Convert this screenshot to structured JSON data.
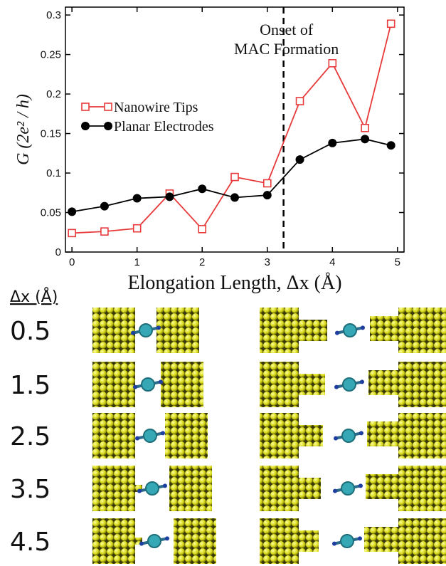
{
  "chart_data": {
    "type": "line",
    "ylabel": "G (2e² / h)",
    "xlabel": "Elongation Length, Δx (Å)",
    "x": [
      0,
      0.5,
      1,
      1.5,
      2,
      2.5,
      3,
      3.5,
      4,
      4.5,
      4.9
    ],
    "series": [
      {
        "name": "Nanowire Tips",
        "color": "#e83a3a",
        "marker": "open-square",
        "values": [
          0.024,
          0.026,
          0.03,
          0.074,
          0.029,
          0.095,
          0.087,
          0.191,
          0.239,
          0.157,
          0.289
        ]
      },
      {
        "name": "Planar Electrodes",
        "color": "#000000",
        "marker": "circle",
        "values": [
          0.051,
          0.058,
          0.068,
          0.07,
          0.08,
          0.069,
          0.072,
          0.117,
          0.138,
          0.143,
          0.135
        ]
      }
    ],
    "xlim": [
      -0.1,
      5.1
    ],
    "xticks": [
      0,
      1,
      2,
      3,
      4,
      5
    ],
    "ylim": [
      0,
      0.31
    ],
    "yticks": [
      0,
      0.05,
      0.1,
      0.15,
      0.2,
      0.25,
      0.3
    ],
    "legend": "center-left",
    "vline": {
      "x": 3.25,
      "label": [
        "Onset of",
        "MAC Formation"
      ]
    }
  },
  "panel": {
    "header": "Δx (Å)",
    "rows": [
      "0.5",
      "1.5",
      "2.5",
      "3.5",
      "4.5"
    ]
  }
}
